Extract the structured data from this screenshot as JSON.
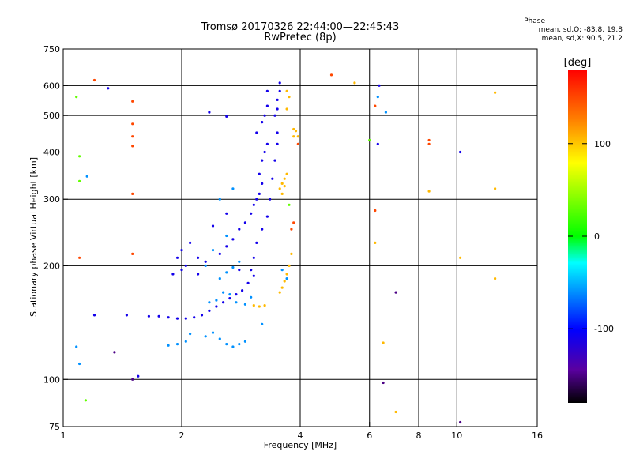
{
  "chart_data": {
    "type": "scatter",
    "title": "Tromsø 20170326 22:44:00—22:45:43",
    "subtitle": "RwPretec (8p)",
    "xlabel": "Frequency [MHz]",
    "ylabel": "Stationary phase Virtual Height [km]",
    "x_scale": "log",
    "y_scale": "log",
    "xlim": [
      1,
      16
    ],
    "ylim": [
      75,
      750
    ],
    "x_ticks": [
      1,
      2,
      4,
      6,
      8,
      10,
      16
    ],
    "y_ticks": [
      75,
      100,
      200,
      300,
      400,
      500,
      600,
      750
    ],
    "x_grid": [
      2,
      4,
      6,
      8,
      10
    ],
    "y_grid": [
      100,
      200,
      300,
      400,
      500,
      600
    ],
    "grid": true,
    "phase_stats": {
      "heading": "Phase",
      "line_o": "mean, sd,O: -83.8, 19.8",
      "line_x": "mean, sd,X:  90.5, 21.2"
    },
    "colorbar": {
      "label": "[deg]",
      "range": [
        -180,
        180
      ],
      "ticks": [
        100,
        0,
        -100
      ]
    },
    "series": [
      {
        "color_deg": -110,
        "points": [
          [
            1.65,
            147
          ],
          [
            1.75,
            147
          ],
          [
            1.85,
            146
          ],
          [
            1.95,
            145
          ],
          [
            2.05,
            145
          ],
          [
            2.15,
            146
          ],
          [
            2.25,
            148
          ],
          [
            2.35,
            152
          ],
          [
            2.45,
            156
          ],
          [
            2.55,
            160
          ],
          [
            2.65,
            164
          ],
          [
            2.75,
            168
          ],
          [
            2.85,
            172
          ],
          [
            2.95,
            180
          ],
          [
            3.05,
            188
          ],
          [
            1.9,
            190
          ],
          [
            2.0,
            195
          ],
          [
            2.05,
            200
          ],
          [
            1.95,
            210
          ],
          [
            2.0,
            220
          ],
          [
            2.1,
            230
          ],
          [
            2.2,
            210
          ],
          [
            2.3,
            205
          ],
          [
            2.5,
            215
          ],
          [
            2.6,
            225
          ],
          [
            2.7,
            235
          ],
          [
            2.8,
            250
          ],
          [
            2.9,
            260
          ],
          [
            3.0,
            275
          ],
          [
            3.05,
            290
          ],
          [
            3.1,
            300
          ],
          [
            3.15,
            310
          ],
          [
            3.2,
            330
          ],
          [
            3.15,
            350
          ],
          [
            3.2,
            380
          ],
          [
            3.25,
            400
          ],
          [
            3.3,
            420
          ],
          [
            3.1,
            450
          ],
          [
            3.2,
            480
          ],
          [
            3.25,
            500
          ],
          [
            3.3,
            530
          ],
          [
            3.45,
            500
          ],
          [
            3.5,
            520
          ],
          [
            3.5,
            550
          ],
          [
            3.55,
            580
          ],
          [
            3.55,
            610
          ],
          [
            3.5,
            450
          ],
          [
            3.5,
            420
          ],
          [
            3.45,
            380
          ],
          [
            3.4,
            340
          ],
          [
            3.35,
            300
          ],
          [
            3.3,
            270
          ],
          [
            3.2,
            250
          ],
          [
            3.1,
            230
          ],
          [
            3.05,
            210
          ],
          [
            3.0,
            195
          ],
          [
            2.4,
            255
          ],
          [
            2.6,
            275
          ],
          [
            2.2,
            190
          ],
          [
            2.8,
            195
          ],
          [
            3.3,
            580
          ],
          [
            6.35,
            600
          ],
          [
            6.3,
            420
          ],
          [
            1.45,
            148
          ],
          [
            1.2,
            148
          ],
          [
            1.55,
            102
          ],
          [
            2.35,
            510
          ],
          [
            2.6,
            497
          ],
          [
            1.3,
            590
          ],
          [
            10.2,
            400
          ]
        ]
      },
      {
        "color_deg": -60,
        "points": [
          [
            1.85,
            123
          ],
          [
            1.95,
            124
          ],
          [
            2.05,
            126
          ],
          [
            2.3,
            130
          ],
          [
            2.4,
            133
          ],
          [
            2.5,
            128
          ],
          [
            2.6,
            124
          ],
          [
            2.7,
            122
          ],
          [
            2.8,
            124
          ],
          [
            2.9,
            126
          ],
          [
            2.35,
            160
          ],
          [
            2.45,
            162
          ],
          [
            2.55,
            170
          ],
          [
            2.65,
            168
          ],
          [
            2.75,
            160
          ],
          [
            2.9,
            158
          ],
          [
            3.0,
            165
          ],
          [
            2.5,
            185
          ],
          [
            2.6,
            192
          ],
          [
            2.7,
            198
          ],
          [
            2.8,
            205
          ],
          [
            2.6,
            240
          ],
          [
            2.4,
            220
          ],
          [
            2.3,
            200
          ],
          [
            2.5,
            300
          ],
          [
            2.7,
            320
          ],
          [
            3.7,
            185
          ],
          [
            3.6,
            195
          ],
          [
            1.1,
            110
          ],
          [
            1.08,
            122
          ],
          [
            1.15,
            345
          ],
          [
            6.6,
            510
          ],
          [
            6.3,
            560
          ],
          [
            3.2,
            140
          ],
          [
            2.1,
            132
          ]
        ]
      },
      {
        "color_deg": 105,
        "points": [
          [
            3.05,
            157
          ],
          [
            3.15,
            156
          ],
          [
            3.25,
            157
          ],
          [
            3.55,
            170
          ],
          [
            3.6,
            175
          ],
          [
            3.65,
            182
          ],
          [
            3.7,
            190
          ],
          [
            3.75,
            200
          ],
          [
            3.8,
            215
          ],
          [
            3.55,
            320
          ],
          [
            3.6,
            330
          ],
          [
            3.65,
            340
          ],
          [
            3.7,
            350
          ],
          [
            3.6,
            310
          ],
          [
            3.65,
            325
          ],
          [
            3.85,
            440
          ],
          [
            3.9,
            455
          ],
          [
            3.95,
            440
          ],
          [
            3.85,
            460
          ],
          [
            3.7,
            520
          ],
          [
            3.75,
            560
          ],
          [
            3.7,
            580
          ],
          [
            6.5,
            125
          ],
          [
            6.2,
            230
          ],
          [
            10.2,
            210
          ],
          [
            12.5,
            185
          ],
          [
            12.5,
            320
          ],
          [
            12.5,
            575
          ],
          [
            8.5,
            315
          ],
          [
            5.5,
            610
          ],
          [
            7.0,
            82
          ]
        ]
      },
      {
        "color_deg": 150,
        "points": [
          [
            1.5,
            545
          ],
          [
            1.5,
            475
          ],
          [
            1.5,
            440
          ],
          [
            1.5,
            415
          ],
          [
            1.5,
            310
          ],
          [
            1.2,
            620
          ],
          [
            3.95,
            420
          ],
          [
            3.8,
            250
          ],
          [
            3.85,
            260
          ],
          [
            4.8,
            640
          ],
          [
            8.5,
            420
          ],
          [
            8.5,
            430
          ],
          [
            6.2,
            530
          ],
          [
            6.2,
            280
          ],
          [
            1.5,
            215
          ],
          [
            1.1,
            210
          ]
        ]
      },
      {
        "color_deg": 30,
        "points": [
          [
            1.08,
            560
          ],
          [
            1.1,
            390
          ],
          [
            1.1,
            335
          ],
          [
            1.14,
            88
          ],
          [
            6.0,
            430
          ],
          [
            3.75,
            290
          ]
        ]
      },
      {
        "color_deg": -150,
        "points": [
          [
            7.0,
            170
          ],
          [
            1.5,
            100
          ],
          [
            6.5,
            98
          ],
          [
            10.2,
            77
          ],
          [
            1.35,
            118
          ]
        ]
      }
    ]
  }
}
